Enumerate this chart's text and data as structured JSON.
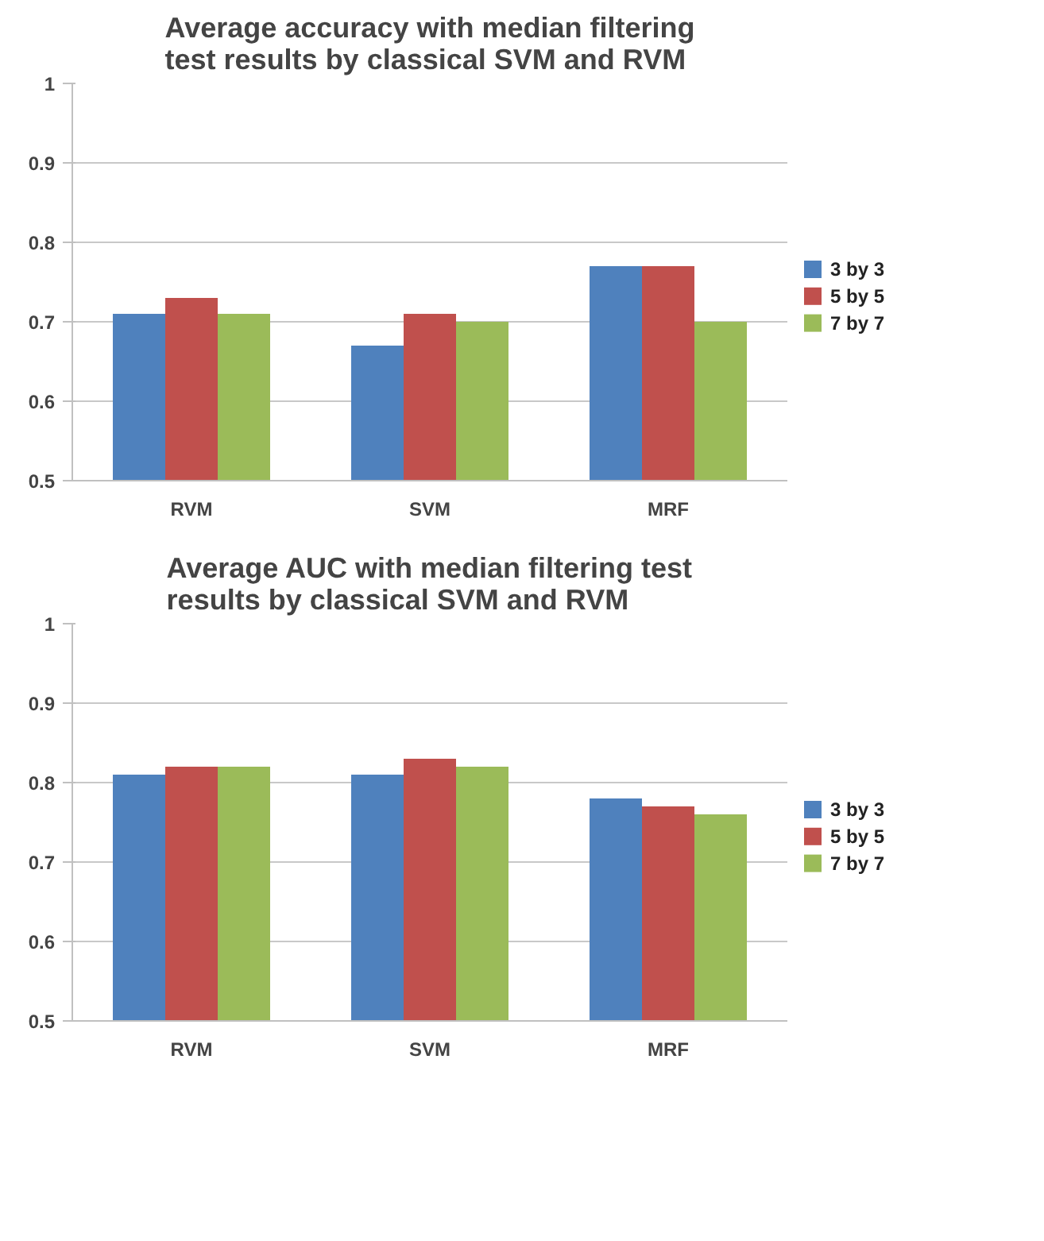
{
  "chart_data": [
    {
      "type": "bar",
      "title": "Average accuracy with median filtering test results by classical SVM and RVM",
      "categories": [
        "RVM",
        "SVM",
        "MRF"
      ],
      "ylim": [
        0.5,
        1
      ],
      "yticks": [
        0.5,
        0.6,
        0.7,
        0.8,
        0.9,
        1
      ],
      "grid": "y",
      "legend": "right",
      "series": [
        {
          "name": "3 by 3",
          "color": "#4f81bd",
          "values": [
            0.71,
            0.67,
            0.77
          ]
        },
        {
          "name": "5 by 5",
          "color": "#c0504d",
          "values": [
            0.73,
            0.71,
            0.77
          ]
        },
        {
          "name": "7 by 7",
          "color": "#9bbb59",
          "values": [
            0.71,
            0.7,
            0.7
          ]
        }
      ]
    },
    {
      "type": "bar",
      "title": "Average AUC with median filtering test results by classical SVM and RVM",
      "categories": [
        "RVM",
        "SVM",
        "MRF"
      ],
      "ylim": [
        0.5,
        1
      ],
      "yticks": [
        0.5,
        0.6,
        0.7,
        0.8,
        0.9,
        1
      ],
      "grid": "y",
      "legend": "right",
      "series": [
        {
          "name": "3 by 3",
          "color": "#4f81bd",
          "values": [
            0.81,
            0.81,
            0.78
          ]
        },
        {
          "name": "5 by 5",
          "color": "#c0504d",
          "values": [
            0.82,
            0.83,
            0.77
          ]
        },
        {
          "name": "7 by 7",
          "color": "#9bbb59",
          "values": [
            0.82,
            0.82,
            0.76
          ]
        }
      ]
    }
  ]
}
